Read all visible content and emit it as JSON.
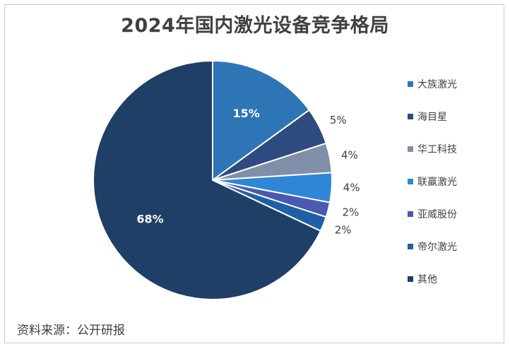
{
  "title": "2024年国内激光设备竞争格局",
  "source": "资料来源：公开研报",
  "chart_data": {
    "type": "pie",
    "title": "2024年国内激光设备竞争格局",
    "slices": [
      {
        "label": "大族激光",
        "value": 15,
        "value_label": "15%",
        "color": "#2e75b6"
      },
      {
        "label": "海目星",
        "value": 5,
        "value_label": "5%",
        "color": "#2f4a7e"
      },
      {
        "label": "华工科技",
        "value": 4,
        "value_label": "4%",
        "color": "#7f8fa9"
      },
      {
        "label": "联赢激光",
        "value": 4,
        "value_label": "4%",
        "color": "#2f86d6"
      },
      {
        "label": "亚威股份",
        "value": 2,
        "value_label": "2%",
        "color": "#4a5ab0"
      },
      {
        "label": "帝尔激光",
        "value": 2,
        "value_label": "2%",
        "color": "#1f5fa8"
      },
      {
        "label": "其他",
        "value": 68,
        "value_label": "68%",
        "color": "#1f3f66"
      }
    ],
    "legend_position": "right"
  }
}
